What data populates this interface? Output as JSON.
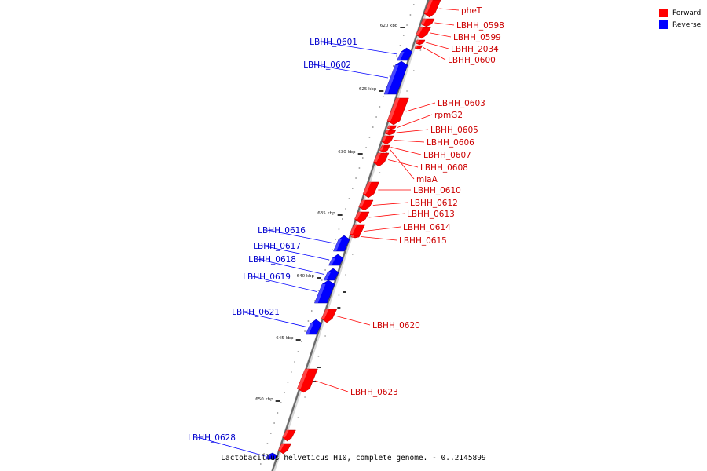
{
  "legend": [
    {
      "label": "Forward",
      "color": "#ff0000"
    },
    {
      "label": "Reverse",
      "color": "#0000ff"
    }
  ],
  "caption": "Lactobacillus helveticus H10, complete genome. - 0..2145899",
  "ticks": [
    "620 kbp",
    "625 kbp",
    "630 kbp",
    "635 kbp",
    "640 kbp",
    "645 kbp",
    "650 kbp"
  ],
  "genes": [
    {
      "name": "pheT",
      "strand": "forward"
    },
    {
      "name": "LBHH_0598",
      "strand": "forward"
    },
    {
      "name": "LBHH_0599",
      "strand": "forward"
    },
    {
      "name": "LBHH_2034",
      "strand": "forward"
    },
    {
      "name": "LBHH_0600",
      "strand": "forward"
    },
    {
      "name": "LBHH_0601",
      "strand": "reverse"
    },
    {
      "name": "LBHH_0602",
      "strand": "reverse"
    },
    {
      "name": "LBHH_0603",
      "strand": "forward"
    },
    {
      "name": "rpmG2",
      "strand": "forward"
    },
    {
      "name": "LBHH_0605",
      "strand": "forward"
    },
    {
      "name": "LBHH_0606",
      "strand": "forward"
    },
    {
      "name": "LBHH_0607",
      "strand": "forward"
    },
    {
      "name": "LBHH_0608",
      "strand": "forward"
    },
    {
      "name": "miaA",
      "strand": "forward"
    },
    {
      "name": "LBHH_0610",
      "strand": "forward"
    },
    {
      "name": "LBHH_0612",
      "strand": "forward"
    },
    {
      "name": "LBHH_0613",
      "strand": "forward"
    },
    {
      "name": "LBHH_0614",
      "strand": "forward"
    },
    {
      "name": "LBHH_0615",
      "strand": "forward"
    },
    {
      "name": "LBHH_0616",
      "strand": "reverse"
    },
    {
      "name": "LBHH_0617",
      "strand": "reverse"
    },
    {
      "name": "LBHH_0618",
      "strand": "reverse"
    },
    {
      "name": "LBHH_0619",
      "strand": "reverse"
    },
    {
      "name": "LBHH_0620",
      "strand": "forward"
    },
    {
      "name": "LBHH_0621",
      "strand": "reverse"
    },
    {
      "name": "LBHH_0623",
      "strand": "forward"
    },
    {
      "name": "LBHH_0628",
      "strand": "reverse"
    }
  ]
}
